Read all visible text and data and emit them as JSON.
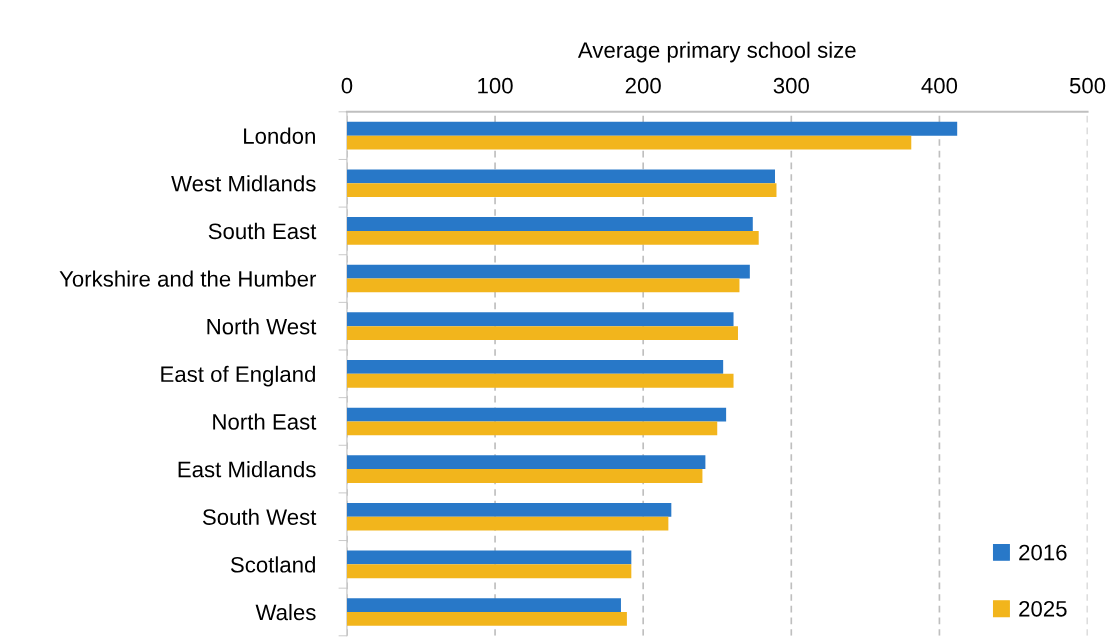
{
  "chart_data": {
    "type": "bar",
    "orientation": "horizontal",
    "xlabel": "Average primary school size",
    "categories": [
      "London",
      "West Midlands",
      "South East",
      "Yorkshire and the Humber",
      "North West",
      "East of England",
      "North East",
      "East Midlands",
      "South West",
      "Scotland",
      "Wales"
    ],
    "series": [
      {
        "name": "2016",
        "color": "#2878c8",
        "values": [
          412,
          289,
          274,
          272,
          261,
          254,
          256,
          242,
          219,
          192,
          185
        ]
      },
      {
        "name": "2025",
        "color": "#f2b51c",
        "values": [
          381,
          290,
          278,
          265,
          264,
          261,
          250,
          240,
          217,
          192,
          189
        ]
      }
    ],
    "xlim": [
      0,
      500
    ],
    "xticks": [
      0,
      100,
      200,
      300,
      400,
      500
    ],
    "grid": "x",
    "legend": "bottom right"
  }
}
